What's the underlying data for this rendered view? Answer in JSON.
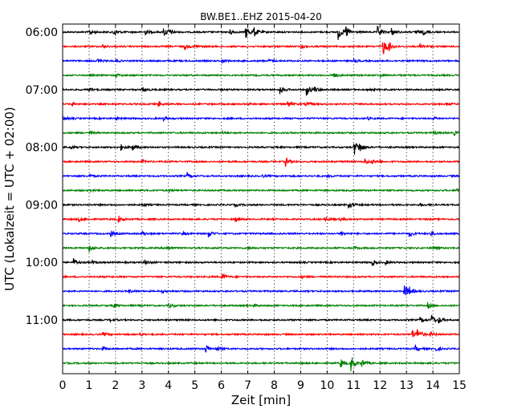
{
  "chart_data": {
    "type": "line",
    "title": "BW.BE1..EHZ 2015-04-20",
    "xlabel": "Zeit  [min]",
    "ylabel": "UTC (Lokalzeit = UTC + 02:00)",
    "xlim": [
      0,
      15
    ],
    "x_ticks": [
      "0",
      "1",
      "2",
      "3",
      "4",
      "5",
      "6",
      "7",
      "8",
      "9",
      "10",
      "11",
      "12",
      "13",
      "14",
      "15"
    ],
    "grid": "vertical dotted",
    "trace_interval_minutes": 15,
    "trace_colors": [
      "#000000",
      "#ff0000",
      "#0000ff",
      "#008000"
    ],
    "y_ticks": [
      {
        "label": "06:00",
        "trace": 0
      },
      {
        "label": "07:00",
        "trace": 4
      },
      {
        "label": "08:00",
        "trace": 8
      },
      {
        "label": "09:00",
        "trace": 12
      },
      {
        "label": "10:00",
        "trace": 16
      },
      {
        "label": "11:00",
        "trace": 20
      }
    ],
    "traces": [
      {
        "start": "06:00",
        "events": [
          [
            1.0,
            0.35
          ],
          [
            1.9,
            0.5
          ],
          [
            3.1,
            0.3
          ],
          [
            3.8,
            0.6
          ],
          [
            4.0,
            0.3
          ],
          [
            6.3,
            0.3
          ],
          [
            6.9,
            0.8
          ],
          [
            7.2,
            0.6
          ],
          [
            10.4,
            0.9
          ],
          [
            10.7,
            0.7
          ],
          [
            11.9,
            0.6
          ],
          [
            12.4,
            0.5
          ],
          [
            13.3,
            0.4
          ],
          [
            13.6,
            0.3
          ]
        ]
      },
      {
        "start": "06:15",
        "events": [
          [
            1.5,
            0.2
          ],
          [
            4.6,
            0.3
          ],
          [
            5.0,
            0.2
          ],
          [
            9.0,
            0.2
          ],
          [
            12.1,
            1.0
          ],
          [
            12.3,
            0.5
          ],
          [
            13.5,
            0.3
          ]
        ]
      },
      {
        "start": "06:30",
        "events": [
          [
            1.3,
            0.2
          ],
          [
            2.0,
            0.15
          ],
          [
            6.0,
            0.3
          ],
          [
            7.8,
            0.15
          ],
          [
            11.0,
            0.15
          ]
        ]
      },
      {
        "start": "06:45",
        "events": [
          [
            2.0,
            0.15
          ],
          [
            10.2,
            0.35
          ],
          [
            12.0,
            0.15
          ]
        ]
      },
      {
        "start": "07:00",
        "events": [
          [
            1.0,
            0.15
          ],
          [
            3.0,
            0.3
          ],
          [
            8.2,
            0.5
          ],
          [
            9.2,
            0.7
          ],
          [
            9.5,
            0.3
          ],
          [
            11.5,
            0.15
          ]
        ]
      },
      {
        "start": "07:15",
        "events": [
          [
            0.3,
            0.3
          ],
          [
            3.6,
            0.3
          ],
          [
            7.0,
            0.15
          ],
          [
            8.5,
            0.35
          ],
          [
            9.2,
            0.3
          ],
          [
            14.5,
            0.15
          ]
        ]
      },
      {
        "start": "07:30",
        "events": [
          [
            0.0,
            0.25
          ],
          [
            2.0,
            0.15
          ],
          [
            3.8,
            0.2
          ],
          [
            11.5,
            0.15
          ],
          [
            14.0,
            0.15
          ]
        ]
      },
      {
        "start": "07:45",
        "events": [
          [
            1.0,
            0.15
          ],
          [
            6.0,
            0.15
          ],
          [
            14.0,
            0.2
          ],
          [
            14.8,
            0.2
          ]
        ]
      },
      {
        "start": "08:00",
        "events": [
          [
            0.3,
            0.2
          ],
          [
            2.2,
            0.3
          ],
          [
            2.6,
            0.45
          ],
          [
            11.0,
            1.0
          ],
          [
            11.2,
            0.5
          ]
        ]
      },
      {
        "start": "08:15",
        "events": [
          [
            3.0,
            0.15
          ],
          [
            8.4,
            0.6
          ],
          [
            11.4,
            0.4
          ],
          [
            11.7,
            0.2
          ]
        ]
      },
      {
        "start": "08:30",
        "events": [
          [
            1.0,
            0.15
          ],
          [
            4.7,
            0.3
          ],
          [
            7.5,
            0.15
          ],
          [
            10.0,
            0.15
          ]
        ]
      },
      {
        "start": "08:45",
        "events": [
          [
            1.0,
            0.15
          ],
          [
            4.0,
            0.15
          ],
          [
            14.9,
            0.25
          ]
        ]
      },
      {
        "start": "09:00",
        "events": [
          [
            3.0,
            0.15
          ],
          [
            6.5,
            0.15
          ],
          [
            10.8,
            0.4
          ],
          [
            13.5,
            0.15
          ]
        ]
      },
      {
        "start": "09:15",
        "events": [
          [
            0.6,
            0.25
          ],
          [
            2.1,
            0.35
          ],
          [
            6.5,
            0.35
          ],
          [
            9.9,
            0.3
          ],
          [
            10.5,
            0.2
          ]
        ]
      },
      {
        "start": "09:30",
        "events": [
          [
            1.8,
            0.35
          ],
          [
            3.0,
            0.3
          ],
          [
            4.5,
            0.2
          ],
          [
            5.5,
            0.4
          ],
          [
            10.5,
            0.2
          ],
          [
            13.1,
            0.3
          ],
          [
            13.9,
            0.3
          ]
        ]
      },
      {
        "start": "09:45",
        "events": [
          [
            1.0,
            0.35
          ],
          [
            3.9,
            0.3
          ],
          [
            7.0,
            0.15
          ],
          [
            11.0,
            0.15
          ],
          [
            14.0,
            0.15
          ]
        ]
      },
      {
        "start": "10:00",
        "events": [
          [
            0.4,
            0.4
          ],
          [
            1.1,
            0.2
          ],
          [
            3.1,
            0.3
          ],
          [
            11.7,
            0.3
          ],
          [
            12.2,
            0.2
          ]
        ]
      },
      {
        "start": "10:15",
        "events": [
          [
            6.0,
            0.4
          ],
          [
            9.0,
            0.15
          ]
        ]
      },
      {
        "start": "10:30",
        "events": [
          [
            2.5,
            0.2
          ],
          [
            3.7,
            0.15
          ],
          [
            12.9,
            0.9
          ],
          [
            13.1,
            0.3
          ]
        ]
      },
      {
        "start": "10:45",
        "events": [
          [
            1.9,
            0.3
          ],
          [
            4.0,
            0.3
          ],
          [
            7.2,
            0.15
          ],
          [
            13.8,
            0.3
          ]
        ]
      },
      {
        "start": "11:00",
        "events": [
          [
            1.8,
            0.15
          ],
          [
            13.5,
            0.3
          ],
          [
            13.9,
            0.8
          ],
          [
            14.2,
            0.3
          ]
        ]
      },
      {
        "start": "11:15",
        "events": [
          [
            1.5,
            0.2
          ],
          [
            2.9,
            0.2
          ],
          [
            13.2,
            0.5
          ],
          [
            13.4,
            0.7
          ],
          [
            13.9,
            0.3
          ]
        ]
      },
      {
        "start": "11:30",
        "events": [
          [
            1.5,
            0.2
          ],
          [
            5.4,
            0.5
          ],
          [
            5.8,
            0.3
          ],
          [
            13.3,
            0.4
          ],
          [
            14.1,
            0.2
          ]
        ]
      },
      {
        "start": "11:45",
        "events": [
          [
            10.5,
            0.5
          ],
          [
            10.9,
            0.9
          ],
          [
            11.3,
            0.4
          ]
        ]
      }
    ]
  }
}
